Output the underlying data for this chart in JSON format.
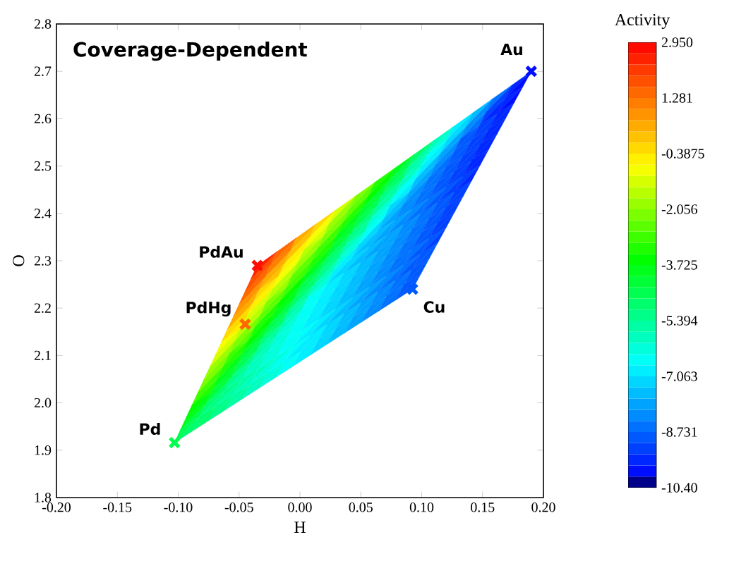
{
  "chart_data": {
    "type": "scatter",
    "title": "Coverage-Dependent",
    "xlabel": "H",
    "ylabel": "O",
    "clabel": "Activity",
    "x": [
      -0.103,
      -0.045,
      -0.035,
      0.19,
      0.0925
    ],
    "values": [
      1.916,
      2.166,
      2.29,
      2.7,
      2.24
    ],
    "cvalues": [
      -4.5,
      1.5,
      2.9,
      -10.0,
      -9.0
    ],
    "marker": "cross",
    "annotations": [
      {
        "text": "Pd",
        "x": -0.103,
        "y": 1.916
      },
      {
        "text": "PdHg",
        "x": -0.045,
        "y": 2.166
      },
      {
        "text": "PdAu",
        "x": -0.035,
        "y": 2.29
      },
      {
        "text": "Au",
        "x": 0.19,
        "y": 2.7
      },
      {
        "text": "Cu",
        "x": 0.0925,
        "y": 2.24
      }
    ],
    "xlim": [
      -0.2,
      0.2
    ],
    "xticks": [
      {
        "value": -0.2,
        "label": "-0.20"
      },
      {
        "value": -0.15,
        "label": "-0.15"
      },
      {
        "value": -0.1,
        "label": "-0.10"
      },
      {
        "value": -0.05,
        "label": "-0.05"
      },
      {
        "value": 0,
        "label": "0.00"
      },
      {
        "value": 0.05,
        "label": "0.05"
      },
      {
        "value": 0.1,
        "label": "0.10"
      },
      {
        "value": 0.15,
        "label": "0.15"
      },
      {
        "value": 0.2,
        "label": "0.20"
      }
    ],
    "ylim": [
      1.8,
      2.8
    ],
    "yticks": [
      1.8,
      1.9,
      {
        "value": 2.0,
        "label": "2.0"
      },
      2.1,
      2.2,
      2.3,
      2.4,
      2.5,
      2.6,
      2.7,
      2.8
    ],
    "clim": [
      -10.4,
      2.95
    ],
    "cticks": [
      {
        "value": 2.95,
        "label": "2.950"
      },
      {
        "value": 1.281,
        "label": "1.281"
      },
      {
        "value": -0.3875,
        "label": "-0.3875"
      },
      {
        "value": -2.056,
        "label": "-2.056"
      },
      {
        "value": -3.725,
        "label": "-3.725"
      },
      {
        "value": -5.394,
        "label": "-5.394"
      },
      {
        "value": -7.063,
        "label": "-7.063"
      },
      {
        "value": -8.731,
        "label": "-8.731"
      },
      {
        "value": -10.4,
        "label": "-10.40"
      }
    ]
  }
}
